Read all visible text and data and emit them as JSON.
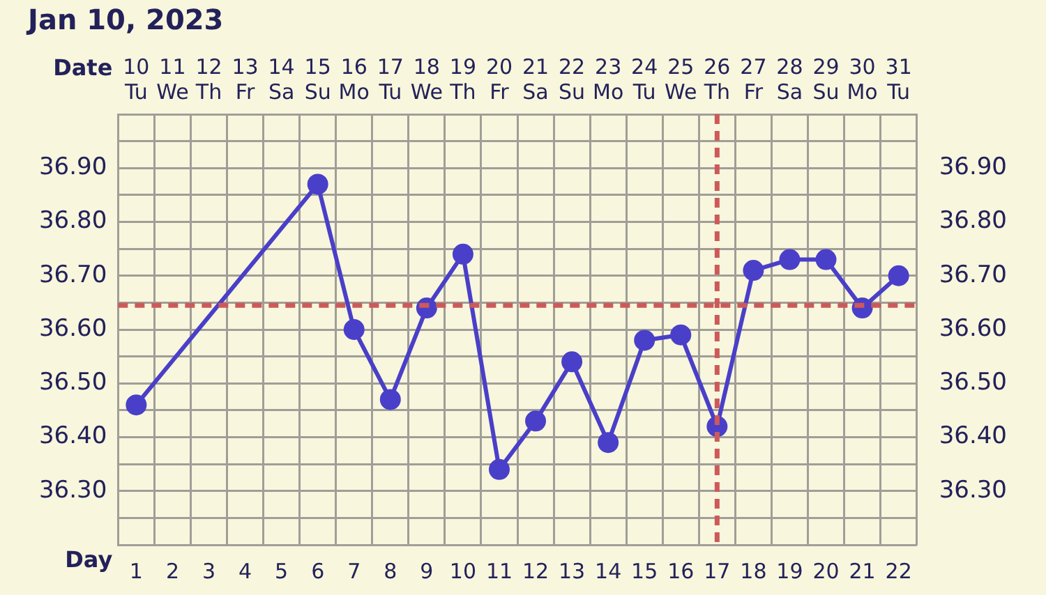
{
  "chart_data": {
    "type": "line",
    "title": "Jan 10, 2023",
    "xlabel": "Date",
    "x2label": "Day",
    "categories": [
      "10 Tu",
      "11 We",
      "12 Th",
      "13 Fr",
      "14 Sa",
      "15 Su",
      "16 Mo",
      "17 Tu",
      "18 We",
      "19 Th",
      "20 Fr",
      "21 Sa",
      "22 Su",
      "23 Mo",
      "24 Tu",
      "25 We",
      "26 Th",
      "27 Fr",
      "28 Sa",
      "29 Su",
      "30 Mo",
      "31 Tu"
    ],
    "series": [
      {
        "color": "#4a3fc8",
        "values": [
          36.46,
          null,
          null,
          null,
          null,
          36.87,
          36.6,
          36.47,
          36.64,
          36.74,
          36.34,
          36.43,
          36.54,
          36.39,
          36.58,
          36.59,
          36.42,
          36.71,
          36.73,
          36.73,
          36.64,
          36.7
        ]
      }
    ],
    "ylim": [
      36.2,
      37.0
    ],
    "yticks": [
      {
        "value": 36.2,
        "label": null
      },
      {
        "value": 36.25,
        "label": null
      },
      {
        "value": 36.3,
        "label": "36.30"
      },
      {
        "value": 36.35,
        "label": null
      },
      {
        "value": 36.4,
        "label": "36.40"
      },
      {
        "value": 36.45,
        "label": null
      },
      {
        "value": 36.5,
        "label": "36.50"
      },
      {
        "value": 36.55,
        "label": null
      },
      {
        "value": 36.6,
        "label": "36.60"
      },
      {
        "value": 36.65,
        "label": null
      },
      {
        "value": 36.7,
        "label": "36.70"
      },
      {
        "value": 36.75,
        "label": null
      },
      {
        "value": 36.8,
        "label": "36.80"
      },
      {
        "value": 36.85,
        "label": null
      },
      {
        "value": 36.9,
        "label": "36.90"
      },
      {
        "value": 36.95,
        "label": null
      },
      {
        "value": 37.0,
        "label": null
      }
    ],
    "y2lim": [
      36.2,
      37.0
    ],
    "y2ticks": [
      {
        "value": 36.3,
        "label": "36.30"
      },
      {
        "value": 36.4,
        "label": "36.40"
      },
      {
        "value": 36.5,
        "label": "36.50"
      },
      {
        "value": 36.6,
        "label": "36.60"
      },
      {
        "value": 36.7,
        "label": "36.70"
      },
      {
        "value": 36.8,
        "label": "36.80"
      },
      {
        "value": 36.9,
        "label": "36.90"
      }
    ],
    "x2lim": [
      0.5,
      22.5
    ],
    "x2ticks": [
      1,
      2,
      3,
      4,
      5,
      6,
      7,
      8,
      9,
      10,
      11,
      12,
      13,
      14,
      15,
      16,
      17,
      18,
      19,
      20,
      21,
      22
    ],
    "ref_lines": [
      {
        "axis": "y",
        "value": 36.645,
        "color": "#cc5a5a",
        "line_style": "dashed"
      },
      {
        "axis": "x",
        "value": "26 Th",
        "color": "#cc5a5a",
        "line_style": "dashed"
      }
    ],
    "grid": true,
    "legend": false,
    "marker": "circle",
    "line_style": "solid"
  }
}
